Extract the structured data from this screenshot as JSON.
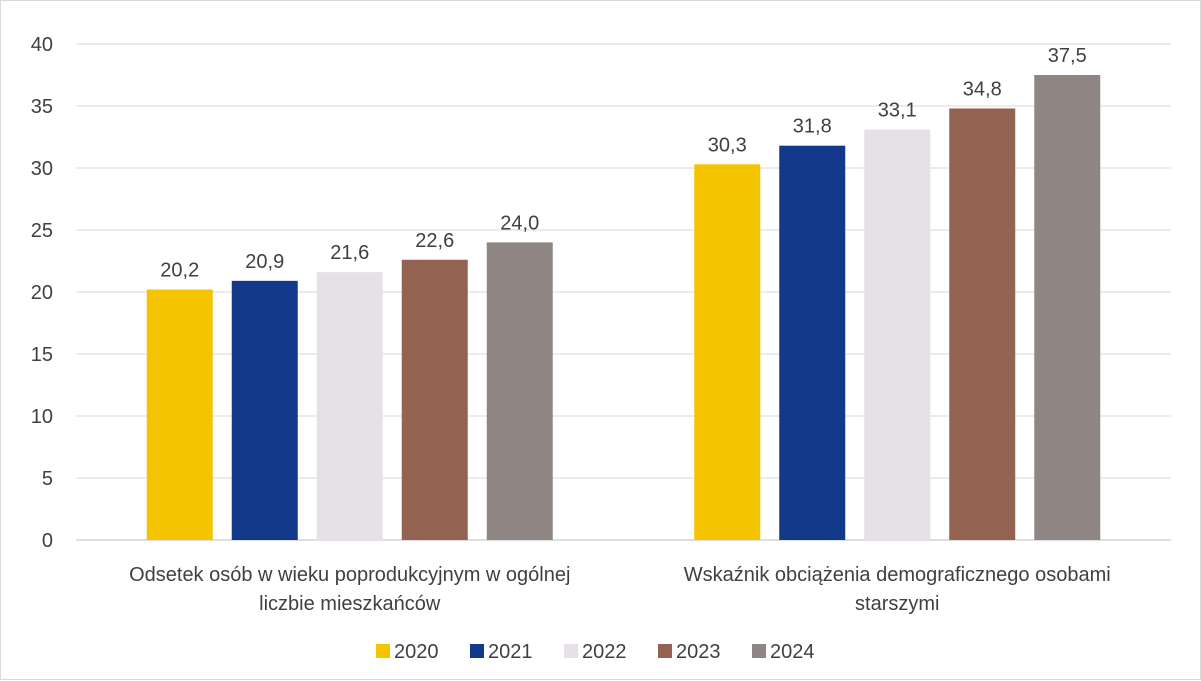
{
  "chart_data": {
    "type": "bar",
    "categories": [
      [
        "Odsetek osób w wieku poprodukcyjnym w ogólnej",
        "liczbie mieszkańców"
      ],
      [
        "Wskaźnik obciążenia demograficznego osobami",
        "starszymi"
      ]
    ],
    "series": [
      {
        "name": "2020",
        "color": "#f5c400",
        "values": [
          20.2,
          30.3
        ],
        "labels": [
          "20,2",
          "30,3"
        ]
      },
      {
        "name": "2021",
        "color": "#13398a",
        "values": [
          20.9,
          31.8
        ],
        "labels": [
          "20,9",
          "31,8"
        ]
      },
      {
        "name": "2022",
        "color": "#e5e1e6",
        "values": [
          21.6,
          33.1
        ],
        "labels": [
          "21,6",
          "33,1"
        ]
      },
      {
        "name": "2023",
        "color": "#946251",
        "values": [
          22.6,
          34.8
        ],
        "labels": [
          "22,6",
          "34,8"
        ]
      },
      {
        "name": "2024",
        "color": "#8f8583",
        "values": [
          24.0,
          37.5
        ],
        "labels": [
          "24,0",
          "37,5"
        ]
      }
    ],
    "y_ticks": [
      "0",
      "5",
      "10",
      "15",
      "20",
      "25",
      "30",
      "35",
      "40"
    ],
    "ylim": [
      0,
      40
    ],
    "grid": true,
    "legend_position": "bottom"
  }
}
